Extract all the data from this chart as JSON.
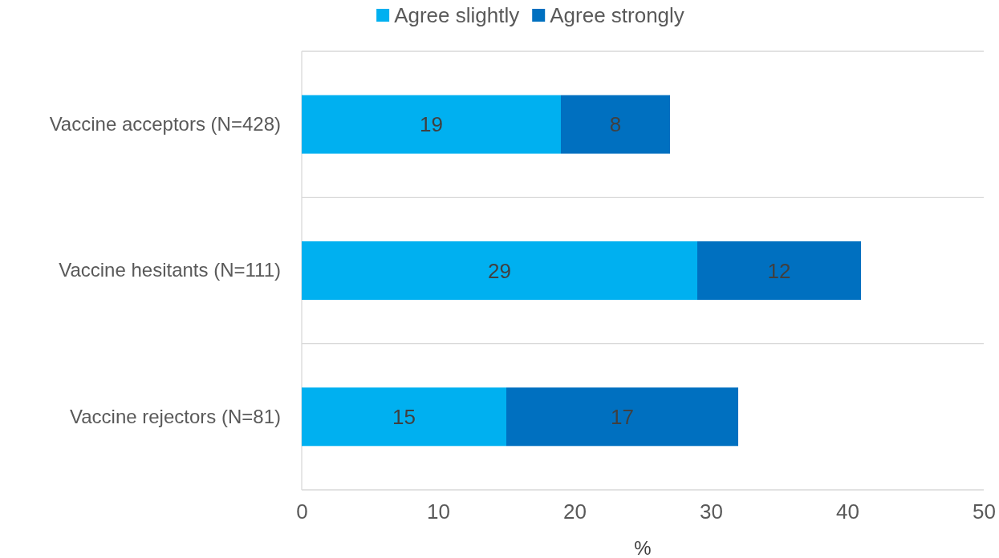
{
  "chart_data": {
    "type": "bar",
    "orientation": "horizontal",
    "stacked": true,
    "categories": [
      "Vaccine acceptors (N=428)",
      "Vaccine hesitants (N=111)",
      "Vaccine rejectors (N=81)"
    ],
    "series": [
      {
        "name": "Agree slightly",
        "color": "#00b0f0",
        "values": [
          19,
          29,
          15
        ]
      },
      {
        "name": "Agree strongly",
        "color": "#0070c0",
        "values": [
          8,
          12,
          17
        ]
      }
    ],
    "xlim": [
      0,
      50
    ],
    "xticks": [
      0,
      10,
      20,
      30,
      40,
      50
    ],
    "xlabel": "%",
    "grid": "y",
    "legend": "top",
    "data_labels": true
  }
}
